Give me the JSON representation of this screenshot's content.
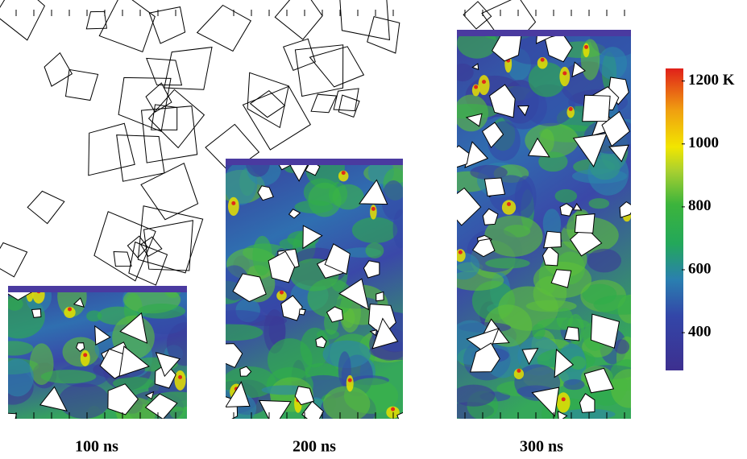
{
  "panels": [
    {
      "caption": "100 ns"
    },
    {
      "caption": "200 ns"
    },
    {
      "caption": "300 ns"
    }
  ],
  "colorbar": {
    "clim": [
      280,
      1240
    ],
    "ticks": [
      {
        "value": 1200,
        "label": "1200 K"
      },
      1000,
      800,
      600,
      400
    ]
  }
}
